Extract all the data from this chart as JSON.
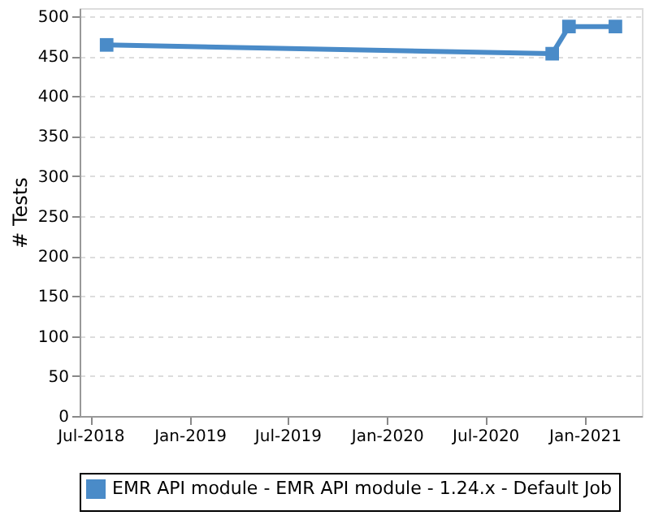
{
  "chart_data": {
    "type": "line",
    "ylabel": "# Tests",
    "x": [
      "2018-07-31",
      "2020-11-02",
      "2020-12-03",
      "2021-02-27"
    ],
    "series": [
      {
        "name": "EMR API module - EMR API module - 1.24.x - Default Job",
        "color": "#4a8bc8",
        "values": [
          464,
          453,
          487,
          487
        ]
      }
    ],
    "xlim": [
      "2018-06-11",
      "2021-04-17"
    ],
    "xticks": [
      {
        "value": "2018-07-01",
        "label": "Jul-2018"
      },
      {
        "value": "2019-01-01",
        "label": "Jan-2019"
      },
      {
        "value": "2019-07-01",
        "label": "Jul-2019"
      },
      {
        "value": "2020-01-01",
        "label": "Jan-2020"
      },
      {
        "value": "2020-07-01",
        "label": "Jul-2020"
      },
      {
        "value": "2021-01-01",
        "label": "Jan-2021"
      }
    ],
    "ylim": [
      0,
      510
    ],
    "yticks": [
      0,
      50,
      100,
      150,
      200,
      250,
      300,
      350,
      400,
      450,
      500
    ],
    "grid": "y",
    "legend": "bottom",
    "marker": "square",
    "line_style": "solid"
  }
}
